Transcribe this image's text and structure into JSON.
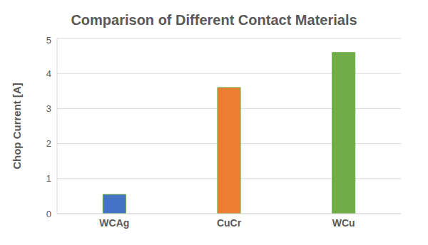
{
  "chart_data": {
    "type": "bar",
    "title": "Comparison of Different Contact Materials",
    "y_label": "Chop Current [A]",
    "categories": [
      "WCAg",
      "CuCr",
      "WCu"
    ],
    "values": [
      0.55,
      3.6,
      4.6
    ],
    "colors": [
      "#4472c4",
      "#ed7d31",
      "#70ad47"
    ],
    "ylim": [
      0,
      5
    ],
    "yticks": [
      0,
      1,
      2,
      3,
      4,
      5
    ],
    "grid": true
  }
}
